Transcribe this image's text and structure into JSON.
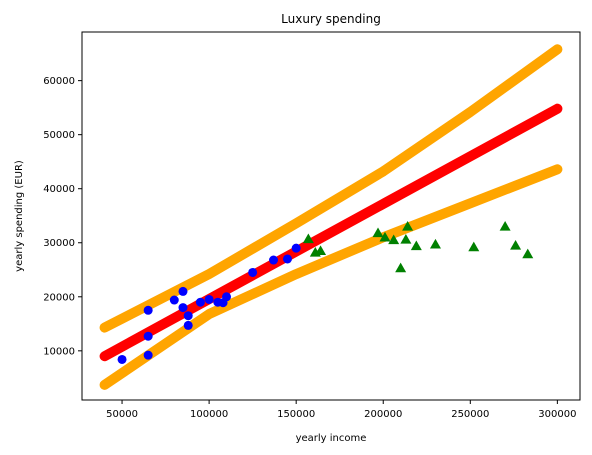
{
  "chart_data": {
    "type": "scatter",
    "title": "Luxury spending",
    "xlabel": "yearly income",
    "ylabel": "yearly spending (EUR)",
    "xlim": [
      27000,
      313000
    ],
    "ylim": [
      900,
      69000
    ],
    "xticks": [
      50000,
      100000,
      150000,
      200000,
      250000,
      300000
    ],
    "yticks": [
      10000,
      20000,
      30000,
      40000,
      50000,
      60000
    ],
    "grid": false,
    "series": [
      {
        "kind": "scatter",
        "marker": "circle",
        "color": "#0000ff",
        "points": [
          [
            50000,
            8400
          ],
          [
            65000,
            9200
          ],
          [
            65000,
            12700
          ],
          [
            65000,
            17500
          ],
          [
            80000,
            19400
          ],
          [
            85000,
            21000
          ],
          [
            85000,
            18000
          ],
          [
            88000,
            16500
          ],
          [
            88000,
            14700
          ],
          [
            95000,
            19000
          ],
          [
            100000,
            19500
          ],
          [
            105000,
            19000
          ],
          [
            108000,
            18900
          ],
          [
            110000,
            20000
          ],
          [
            125000,
            24500
          ],
          [
            137000,
            26800
          ],
          [
            145000,
            27000
          ],
          [
            150000,
            29000
          ]
        ]
      },
      {
        "kind": "scatter",
        "marker": "triangle",
        "color": "#008000",
        "points": [
          [
            157000,
            30700
          ],
          [
            161000,
            28200
          ],
          [
            164000,
            28500
          ],
          [
            197000,
            31800
          ],
          [
            201000,
            31000
          ],
          [
            206000,
            30500
          ],
          [
            210000,
            25300
          ],
          [
            213000,
            30600
          ],
          [
            214000,
            33000
          ],
          [
            219000,
            29400
          ],
          [
            230000,
            29700
          ],
          [
            252000,
            29200
          ],
          [
            270000,
            33000
          ],
          [
            276000,
            29500
          ],
          [
            283000,
            27900
          ]
        ]
      },
      {
        "kind": "line",
        "color": "#ff0000",
        "points": [
          [
            40000,
            9000
          ],
          [
            300000,
            54800
          ]
        ]
      },
      {
        "kind": "line",
        "color": "#ffa500",
        "points": [
          [
            40000,
            14300
          ],
          [
            100000,
            24200
          ],
          [
            150000,
            33600
          ],
          [
            200000,
            43200
          ],
          [
            250000,
            54200
          ],
          [
            300000,
            65800
          ]
        ]
      },
      {
        "kind": "line",
        "color": "#ffa500",
        "points": [
          [
            40000,
            3700
          ],
          [
            100000,
            16800
          ],
          [
            150000,
            24200
          ],
          [
            200000,
            31000
          ],
          [
            250000,
            37300
          ],
          [
            300000,
            43600
          ]
        ]
      }
    ]
  }
}
